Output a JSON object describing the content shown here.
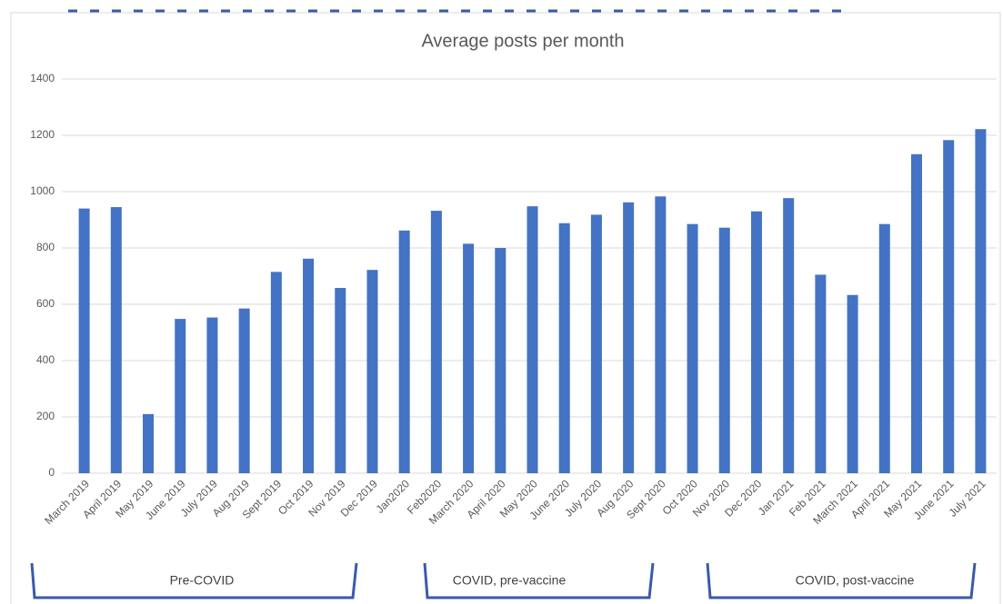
{
  "chart_data": {
    "type": "bar",
    "title": "Average posts per month",
    "categories": [
      "March 2019",
      "April 2019",
      "May 2019",
      "June 2019",
      "July 2019",
      "Aug 2019",
      "Sept 2019",
      "Oct 2019",
      "Nov 2019",
      "Dec 2019",
      "Jan2020",
      "Feb2020",
      "March 2020",
      "April 2020",
      "May 2020",
      "June 2020",
      "July 2020",
      "Aug 2020",
      "Sept 2020",
      "Oct 2020",
      "Nov 2020",
      "Dec 2020",
      "Jan 2021",
      "Feb 2021",
      "March 2021",
      "April 2021",
      "May 2021",
      "June 2021",
      "July 2021"
    ],
    "values": [
      940,
      945,
      210,
      548,
      553,
      585,
      715,
      762,
      658,
      722,
      862,
      932,
      815,
      800,
      948,
      888,
      918,
      962,
      983,
      885,
      872,
      930,
      977,
      705,
      633,
      885,
      1133,
      1183,
      1222
    ],
    "color": "#4472c4",
    "ylim": [
      0,
      1400
    ],
    "yticks": [
      0,
      200,
      400,
      600,
      800,
      1000,
      1200,
      1400
    ],
    "grid": true,
    "annotations": [
      "Pre-COVID",
      "COVID, pre-vaccine",
      "COVID, post-vaccine"
    ]
  }
}
